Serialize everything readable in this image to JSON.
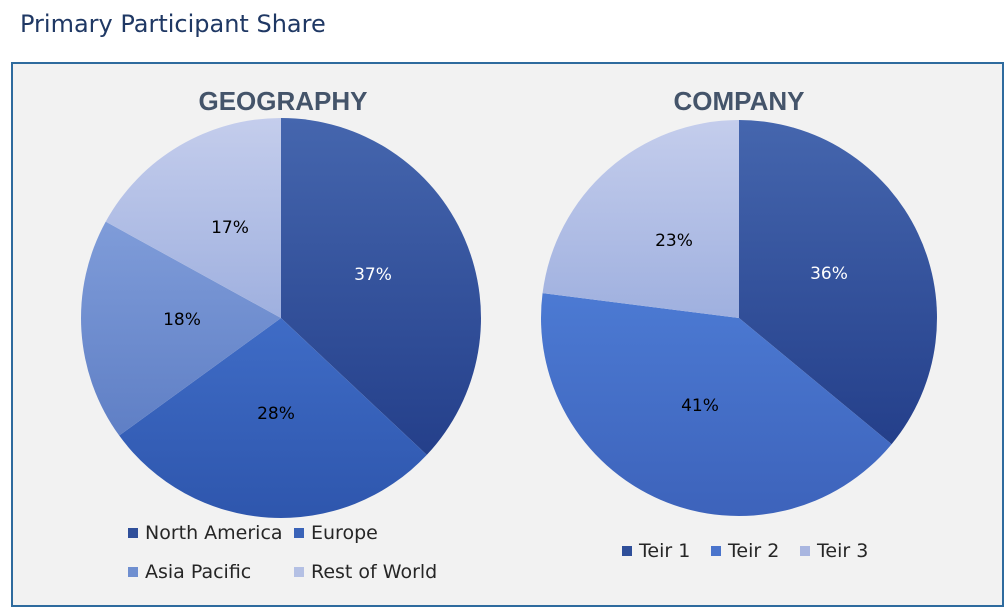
{
  "page": {
    "title": "Primary Participant Share"
  },
  "chart_data": [
    {
      "type": "pie",
      "title": "GEOGRAPHY",
      "categories": [
        "North America",
        "Europe",
        "Asia Pacific",
        "Rest of World"
      ],
      "values": [
        37,
        28,
        18,
        17
      ],
      "data_labels": [
        "37%",
        "28%",
        "18%",
        "17%"
      ],
      "colors": [
        "#2f4f9a",
        "#3a63b8",
        "#6f8fd0",
        "#b4c0e4"
      ],
      "label_colors": [
        "#ffffff",
        "#000000",
        "#000000",
        "#000000"
      ],
      "legend": "bottom"
    },
    {
      "type": "pie",
      "title": "COMPANY",
      "categories": [
        "Teir 1",
        "Teir 2",
        "Teir 3"
      ],
      "values": [
        36,
        41,
        23
      ],
      "data_labels": [
        "36%",
        "41%",
        "23%"
      ],
      "colors": [
        "#2f4f9a",
        "#4a74cc",
        "#a9b6e0"
      ],
      "label_colors": [
        "#ffffff",
        "#000000",
        "#000000"
      ],
      "legend": "bottom"
    }
  ]
}
